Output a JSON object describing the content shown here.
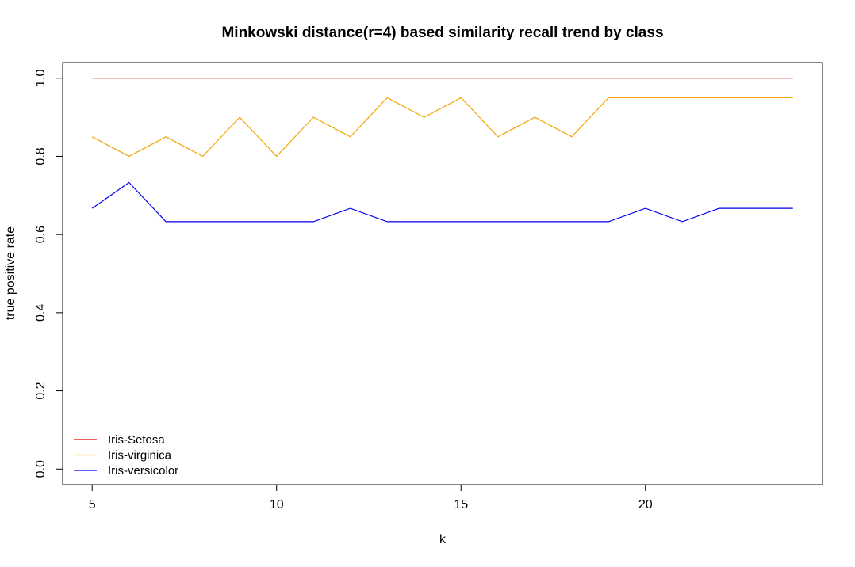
{
  "chart_data": {
    "type": "line",
    "title": "Minkowski distance(r=4) based similarity recall trend by class",
    "xlabel": "k",
    "ylabel": "true positive rate",
    "xlim": [
      4.2,
      24.8
    ],
    "ylim": [
      -0.04,
      1.04
    ],
    "x_ticks": [
      5,
      10,
      15,
      20
    ],
    "y_ticks": [
      0.0,
      0.2,
      0.4,
      0.6,
      0.8,
      1.0
    ],
    "y_tick_labels": [
      "0.0",
      "0.2",
      "0.4",
      "0.6",
      "0.8",
      "1.0"
    ],
    "grid": false,
    "legend_position": "bottom-left",
    "x": [
      5,
      6,
      7,
      8,
      9,
      10,
      11,
      12,
      13,
      14,
      15,
      16,
      17,
      18,
      19,
      20,
      21,
      22,
      23,
      24
    ],
    "series": [
      {
        "name": "Iris-Setosa",
        "color": "#e00000",
        "values": [
          1.0,
          1.0,
          1.0,
          1.0,
          1.0,
          1.0,
          1.0,
          1.0,
          1.0,
          1.0,
          1.0,
          1.0,
          1.0,
          1.0,
          1.0,
          1.0,
          1.0,
          1.0,
          1.0,
          1.0
        ]
      },
      {
        "name": "Iris-virginica",
        "color": "#f5a300",
        "values": [
          0.85,
          0.8,
          0.85,
          0.8,
          0.9,
          0.8,
          0.9,
          0.85,
          0.95,
          0.9,
          0.95,
          0.85,
          0.9,
          0.85,
          0.95,
          0.95,
          0.95,
          0.95,
          0.95,
          0.95
        ]
      },
      {
        "name": "Iris-versicolor",
        "color": "#0000ee",
        "values": [
          0.667,
          0.733,
          0.633,
          0.633,
          0.633,
          0.633,
          0.633,
          0.667,
          0.633,
          0.633,
          0.633,
          0.633,
          0.633,
          0.633,
          0.633,
          0.667,
          0.633,
          0.667,
          0.667,
          0.667
        ]
      }
    ]
  }
}
